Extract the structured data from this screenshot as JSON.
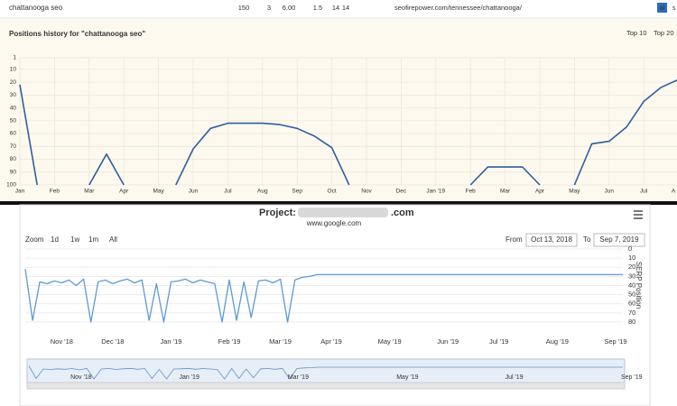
{
  "table_row": {
    "keyword": "chattanooga seo",
    "cells": [
      "150",
      "3",
      "6.00",
      "1.5",
      "14",
      "14"
    ],
    "url": "seofirepower.com/tennessee/chattanooga/",
    "icons": [
      "al",
      "s"
    ]
  },
  "chart_data": [
    {
      "type": "line",
      "title": "Positions history for \"chattanooga seo\"",
      "buttons": [
        "Top 10",
        "Top 20"
      ],
      "categories": [
        "Jan",
        null,
        "Feb",
        null,
        "Mar",
        null,
        "Apr",
        null,
        "May",
        null,
        "Jun",
        null,
        "Jul",
        null,
        "Aug",
        null,
        "Sep",
        null,
        "Oct",
        null,
        "Nov",
        null,
        "Dec",
        null,
        "Jan '19",
        null,
        "Feb",
        null,
        "Mar",
        null,
        "Apr",
        null,
        "May",
        null,
        "Jun",
        null,
        "Jul",
        null,
        "A"
      ],
      "series": [
        {
          "color": "#2f5f9e",
          "values": [
            22,
            100,
            null,
            null,
            100,
            76,
            100,
            null,
            null,
            100,
            72,
            56,
            52,
            52,
            52,
            53,
            56,
            62,
            71,
            100,
            null,
            null,
            null,
            null,
            null,
            null,
            100,
            86,
            86,
            86,
            100,
            null,
            100,
            68,
            66,
            55,
            35,
            24,
            18
          ]
        }
      ],
      "ylim": [
        1,
        100
      ],
      "yticks": [
        1,
        10,
        20,
        30,
        40,
        50,
        60,
        70,
        80,
        90,
        100
      ],
      "reversed": true,
      "grid": true
    },
    {
      "type": "line",
      "project_label": "Project:",
      "project_suffix": ".com",
      "subtitle": "www.google.com",
      "zoom_label": "Zoom",
      "zoom_buttons": [
        "1d",
        "1w",
        "1m",
        "All"
      ],
      "from_label": "From",
      "from": "Oct 13, 2018",
      "to_label": "To",
      "to": "Sep 7, 2019",
      "y_label": "SERP Position",
      "categories": [
        null,
        null,
        null,
        null,
        null,
        "Nov '18",
        null,
        null,
        null,
        null,
        null,
        null,
        "Dec '18",
        null,
        null,
        null,
        null,
        null,
        null,
        null,
        "Jan '19",
        null,
        null,
        null,
        null,
        null,
        null,
        null,
        "Feb '19",
        null,
        null,
        null,
        null,
        null,
        null,
        "Mar '19",
        null,
        null,
        null,
        null,
        null,
        null,
        "Apr '19",
        null,
        null,
        null,
        null,
        null,
        null,
        null,
        "May '19",
        null,
        null,
        null,
        null,
        null,
        null,
        null,
        "Jun '19",
        null,
        null,
        null,
        null,
        null,
        null,
        "Jul '19",
        null,
        null,
        null,
        null,
        null,
        null,
        null,
        "Aug '19",
        null,
        null,
        null,
        null,
        null,
        null,
        null,
        "Sep '19",
        null
      ],
      "series": [
        {
          "color": "#5b9bd5",
          "values": [
            22,
            78,
            36,
            38,
            35,
            37,
            34,
            40,
            33,
            80,
            36,
            34,
            38,
            35,
            33,
            37,
            34,
            78,
            38,
            80,
            36,
            35,
            33,
            37,
            34,
            36,
            38,
            80,
            34,
            78,
            36,
            75,
            35,
            34,
            37,
            33,
            80,
            34,
            31,
            30,
            28,
            28,
            28,
            28,
            28,
            28,
            28,
            28,
            28,
            28,
            28,
            28,
            28,
            28,
            28,
            28,
            28,
            28,
            28,
            28,
            28,
            28,
            28,
            28,
            28,
            28,
            28,
            28,
            28,
            28,
            28,
            28,
            28,
            28,
            28,
            28,
            28,
            28,
            28,
            28,
            28,
            28,
            28
          ]
        }
      ],
      "ylim": [
        0,
        80
      ],
      "yticks": [
        0,
        10,
        20,
        30,
        40,
        50,
        60,
        70,
        80
      ],
      "reversed": true,
      "grid": true
    }
  ]
}
